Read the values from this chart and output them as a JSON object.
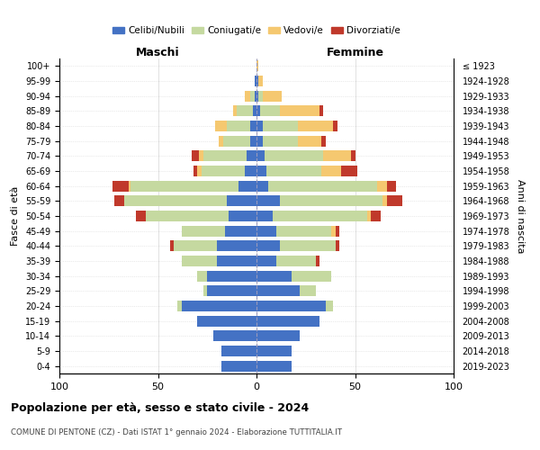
{
  "age_groups": [
    "0-4",
    "5-9",
    "10-14",
    "15-19",
    "20-24",
    "25-29",
    "30-34",
    "35-39",
    "40-44",
    "45-49",
    "50-54",
    "55-59",
    "60-64",
    "65-69",
    "70-74",
    "75-79",
    "80-84",
    "85-89",
    "90-94",
    "95-99",
    "100+"
  ],
  "birth_years": [
    "2019-2023",
    "2014-2018",
    "2009-2013",
    "2004-2008",
    "1999-2003",
    "1994-1998",
    "1989-1993",
    "1984-1988",
    "1979-1983",
    "1974-1978",
    "1969-1973",
    "1964-1968",
    "1959-1963",
    "1954-1958",
    "1949-1953",
    "1944-1948",
    "1939-1943",
    "1934-1938",
    "1929-1933",
    "1924-1928",
    "≤ 1923"
  ],
  "males": {
    "celibe": [
      18,
      18,
      22,
      30,
      38,
      25,
      25,
      20,
      20,
      16,
      14,
      15,
      9,
      6,
      5,
      3,
      3,
      2,
      1,
      1,
      0
    ],
    "coniugato": [
      0,
      0,
      0,
      0,
      2,
      2,
      5,
      18,
      22,
      22,
      42,
      52,
      55,
      22,
      22,
      14,
      12,
      8,
      2,
      0,
      0
    ],
    "vedovo": [
      0,
      0,
      0,
      0,
      0,
      0,
      0,
      0,
      0,
      0,
      0,
      0,
      1,
      2,
      2,
      2,
      6,
      2,
      3,
      0,
      0
    ],
    "divorziato": [
      0,
      0,
      0,
      0,
      0,
      0,
      0,
      0,
      2,
      0,
      5,
      5,
      8,
      2,
      4,
      0,
      0,
      0,
      0,
      0,
      0
    ]
  },
  "females": {
    "nubile": [
      18,
      18,
      22,
      32,
      35,
      22,
      18,
      10,
      12,
      10,
      8,
      12,
      6,
      5,
      4,
      3,
      3,
      2,
      1,
      1,
      0
    ],
    "coniugata": [
      0,
      0,
      0,
      0,
      4,
      8,
      20,
      20,
      28,
      28,
      48,
      52,
      55,
      28,
      30,
      18,
      18,
      10,
      2,
      0,
      0
    ],
    "vedova": [
      0,
      0,
      0,
      0,
      0,
      0,
      0,
      0,
      0,
      2,
      2,
      2,
      5,
      10,
      14,
      12,
      18,
      20,
      10,
      2,
      1
    ],
    "divorziata": [
      0,
      0,
      0,
      0,
      0,
      0,
      0,
      2,
      2,
      2,
      5,
      8,
      5,
      8,
      2,
      2,
      2,
      2,
      0,
      0,
      0
    ]
  },
  "colors": {
    "celibe": "#4472c4",
    "coniugato": "#c5d9a0",
    "vedovo": "#f5c870",
    "divorziato": "#c0392b"
  },
  "xlim": 100,
  "title": "Popolazione per età, sesso e stato civile - 2024",
  "subtitle": "COMUNE DI PENTONE (CZ) - Dati ISTAT 1° gennaio 2024 - Elaborazione TUTTITALIA.IT",
  "ylabel_left": "Fasce di età",
  "ylabel_right": "Anni di nascita",
  "xlabel_left": "Maschi",
  "xlabel_right": "Femmine",
  "legend_labels": [
    "Celibi/Nubili",
    "Coniugati/e",
    "Vedovi/e",
    "Divorziati/e"
  ]
}
